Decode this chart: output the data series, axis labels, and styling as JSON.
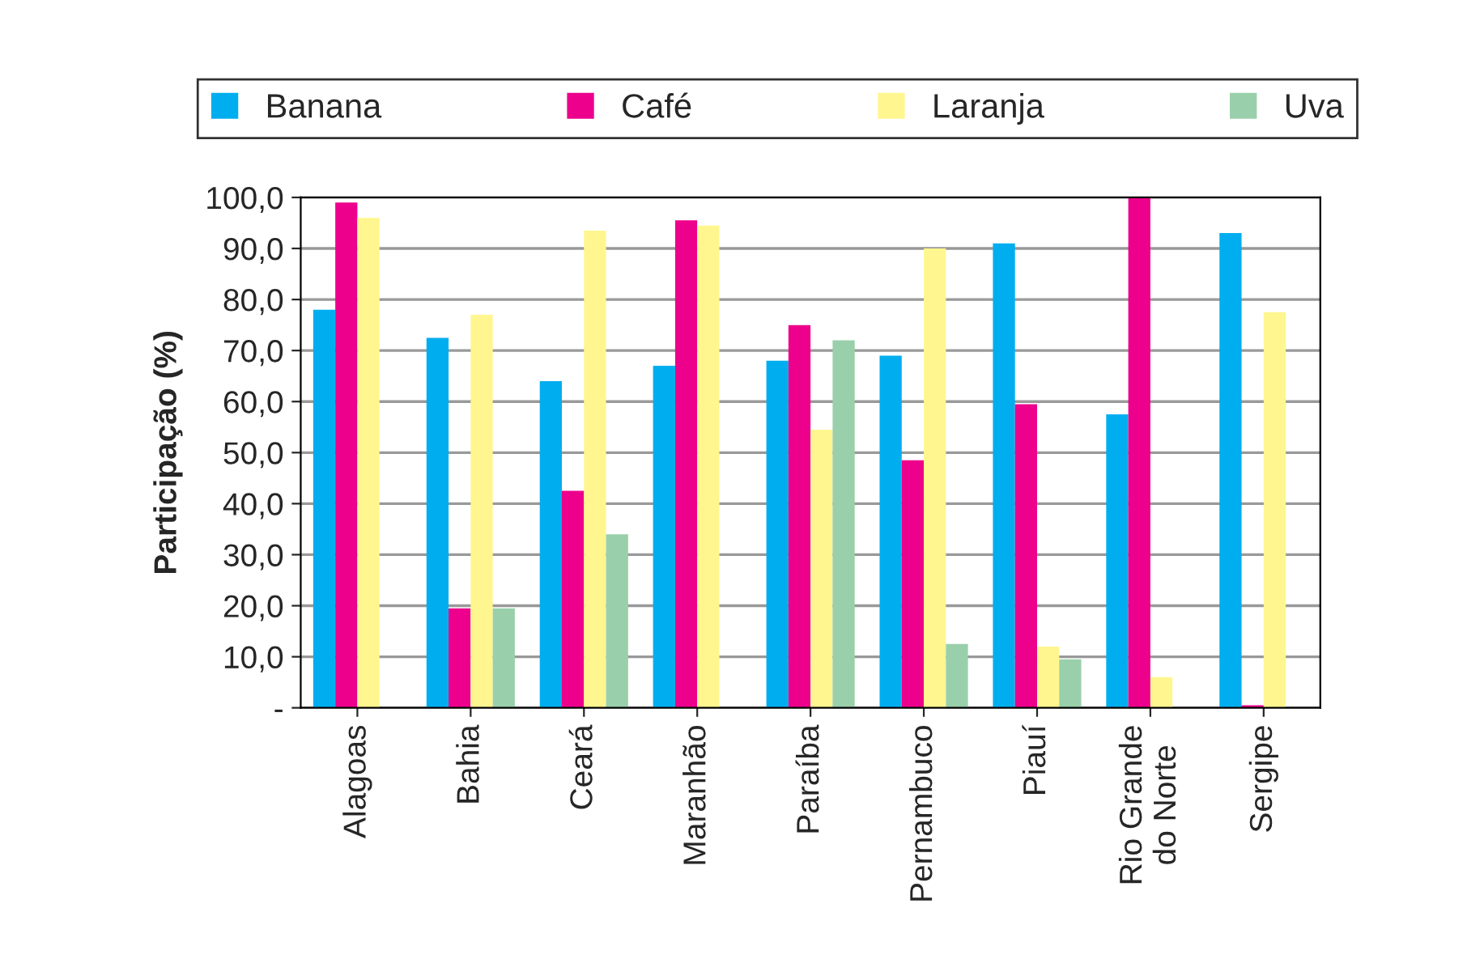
{
  "chart_data": {
    "type": "bar",
    "ylabel": "Participação (%)",
    "categories": [
      "Alagoas",
      "Bahia",
      "Ceará",
      "Maranhão",
      "Paraíba",
      "Pernambuco",
      "Piauí",
      "Rio Grande\ndo Norte",
      "Sergipe"
    ],
    "series": [
      {
        "name": "Banana",
        "color": "#00aeef",
        "values": [
          78,
          72.5,
          64,
          67,
          68,
          69,
          91,
          57.5,
          93
        ]
      },
      {
        "name": "Café",
        "color": "#ec008c",
        "values": [
          99,
          19.5,
          42.5,
          95.5,
          75,
          48.5,
          59.5,
          100,
          0.5
        ]
      },
      {
        "name": "Laranja",
        "color": "#fff68f",
        "values": [
          96,
          77,
          93.5,
          94.5,
          54.5,
          90,
          12,
          6,
          77.5
        ]
      },
      {
        "name": "Uva",
        "color": "#99d0ab",
        "values": [
          0,
          19.5,
          34,
          0,
          72,
          12.5,
          9.5,
          0,
          0
        ]
      }
    ],
    "ylim": [
      0,
      100
    ],
    "yticks": [
      {
        "value": 0,
        "label": "-"
      },
      {
        "value": 10,
        "label": "10,0"
      },
      {
        "value": 20,
        "label": "20,0"
      },
      {
        "value": 30,
        "label": "30,0"
      },
      {
        "value": 40,
        "label": "40,0"
      },
      {
        "value": 50,
        "label": "50,0"
      },
      {
        "value": 60,
        "label": "60,0"
      },
      {
        "value": 70,
        "label": "70,0"
      },
      {
        "value": 80,
        "label": "80,0"
      },
      {
        "value": 90,
        "label": "90,0"
      },
      {
        "value": 100,
        "label": "100,0"
      }
    ],
    "grid": "y",
    "legend": "top"
  }
}
